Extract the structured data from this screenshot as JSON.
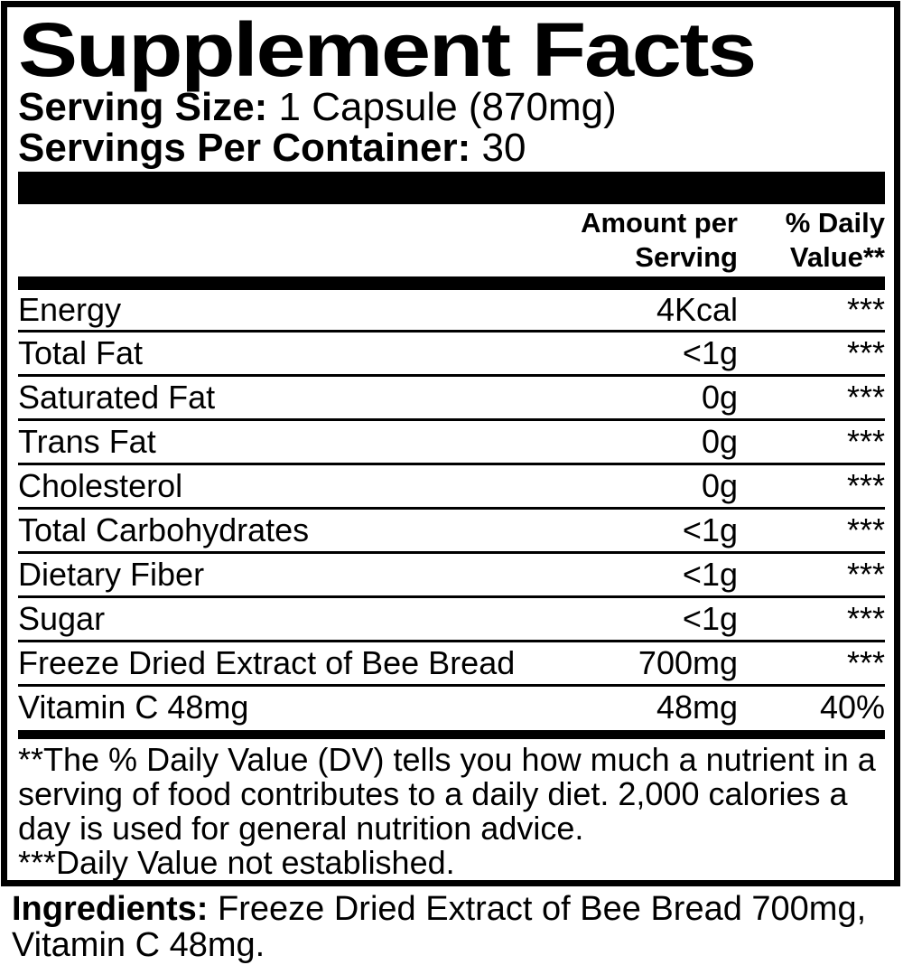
{
  "label": {
    "title": "Supplement Facts",
    "serving_size_label": "Serving Size:",
    "serving_size_value": "1 Capsule (870mg)",
    "servings_per_container_label": "Servings Per Container:",
    "servings_per_container_value": "30",
    "header": {
      "amount_col_line1": "Amount per",
      "amount_col_line2": "Serving",
      "dv_col_line1": "% Daily",
      "dv_col_line2": "Value**"
    },
    "rows": [
      {
        "name": "Energy",
        "amount": "4Kcal",
        "dv": "***"
      },
      {
        "name": "Total Fat",
        "amount": "<1g",
        "dv": "***"
      },
      {
        "name": "Saturated Fat",
        "amount": "0g",
        "dv": "***"
      },
      {
        "name": "Trans Fat",
        "amount": "0g",
        "dv": "***"
      },
      {
        "name": "Cholesterol",
        "amount": "0g",
        "dv": "***"
      },
      {
        "name": "Total Carbohydrates",
        "amount": "<1g",
        "dv": "***"
      },
      {
        "name": "Dietary Fiber",
        "amount": "<1g",
        "dv": "***"
      },
      {
        "name": "Sugar",
        "amount": "<1g",
        "dv": "***"
      },
      {
        "name": "Freeze Dried Extract of Bee Bread",
        "amount": "700mg",
        "dv": "***"
      },
      {
        "name": "Vitamin C 48mg",
        "amount": "48mg",
        "dv": "40%"
      }
    ],
    "footnote_dv": "**The % Daily Value (DV) tells you how much a nutrient in a serving of food contributes to a daily diet. 2,000 calories a day is used for general nutrition advice.",
    "footnote_not_established": "***Daily Value not established.",
    "colors": {
      "ink": "#000000",
      "background": "#ffffff"
    }
  },
  "ingredients": {
    "label": "Ingredients:",
    "value": "Freeze Dried Extract of Bee Bread 700mg, Vitamin C 48mg."
  }
}
